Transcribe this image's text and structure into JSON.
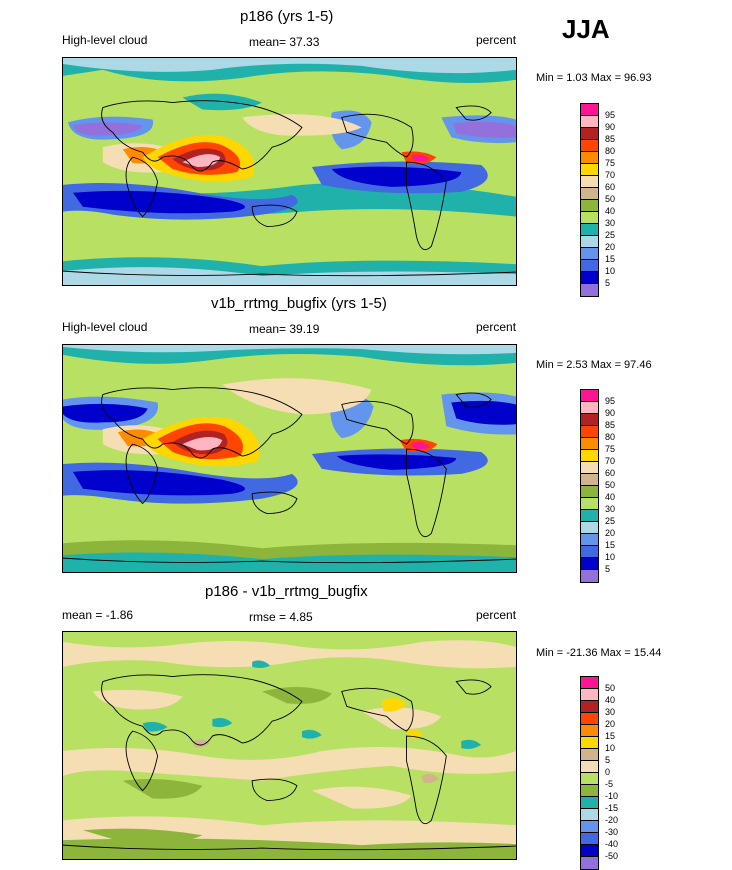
{
  "season": "JJA",
  "panels": [
    {
      "title": "p186 (yrs 1-5)",
      "left_label": "High-level cloud",
      "mean_label": "mean=  37.33",
      "units": "percent",
      "minmax": "Min =   1.03 Max =  96.93",
      "colorbar_labels": [
        "95",
        "90",
        "85",
        "80",
        "75",
        "70",
        "60",
        "50",
        "40",
        "30",
        "25",
        "20",
        "15",
        "10",
        "5"
      ],
      "colorbar_colors": [
        "#ff1493",
        "#ffb6c1",
        "#b22222",
        "#ff4500",
        "#ff8c00",
        "#ffd700",
        "#f5deb3",
        "#d2b48c",
        "#8db53c",
        "#b8e063",
        "#20b2aa",
        "#add8e6",
        "#6495ed",
        "#4169e1",
        "#0000cd",
        "#9370db"
      ]
    },
    {
      "title": "v1b_rrtmg_bugfix (yrs 1-5)",
      "left_label": "High-level cloud",
      "mean_label": "mean=  39.19",
      "units": "percent",
      "minmax": "Min =   2.53 Max =  97.46",
      "colorbar_labels": [
        "95",
        "90",
        "85",
        "80",
        "75",
        "70",
        "60",
        "50",
        "40",
        "30",
        "25",
        "20",
        "15",
        "10",
        "5"
      ],
      "colorbar_colors": [
        "#ff1493",
        "#ffb6c1",
        "#b22222",
        "#ff4500",
        "#ff8c00",
        "#ffd700",
        "#f5deb3",
        "#d2b48c",
        "#8db53c",
        "#b8e063",
        "#20b2aa",
        "#add8e6",
        "#6495ed",
        "#4169e1",
        "#0000cd",
        "#9370db"
      ]
    },
    {
      "title": "p186 - v1b_rrtmg_bugfix",
      "left_label": "mean =  -1.86",
      "mean_label": "rmse =   4.85",
      "units": "percent",
      "minmax": "Min = -21.36 Max =  15.44",
      "colorbar_labels": [
        "50",
        "40",
        "30",
        "20",
        "15",
        "10",
        "5",
        "0",
        "-5",
        "-10",
        "-15",
        "-20",
        "-30",
        "-40",
        "-50"
      ],
      "colorbar_colors": [
        "#ff1493",
        "#ffb6c1",
        "#b22222",
        "#ff4500",
        "#ff8c00",
        "#ffd700",
        "#d2b48c",
        "#f5deb3",
        "#b8e063",
        "#8db53c",
        "#20b2aa",
        "#add8e6",
        "#6495ed",
        "#4169e1",
        "#0000cd",
        "#9370db"
      ]
    }
  ]
}
